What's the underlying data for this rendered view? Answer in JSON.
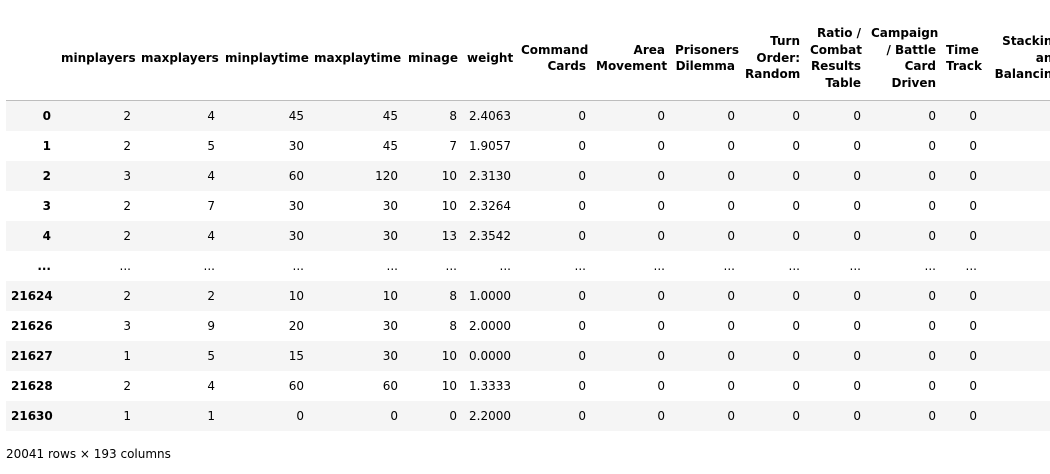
{
  "table": {
    "columns": [
      "",
      "minplayers",
      "maxplayers",
      "minplaytime",
      "maxplaytime",
      "minage",
      "weight",
      "Command Cards",
      "Area Movement",
      "Prisoners Dilemma",
      "Turn Order: Random",
      "Ratio / Combat Results Table",
      "Campaign / Battle Card Driven",
      "Time Track",
      "Stacking and Balancing"
    ],
    "rows": [
      {
        "index": "0",
        "cells": [
          "2",
          "4",
          "45",
          "45",
          "8",
          "2.4063",
          "0",
          "0",
          "0",
          "0",
          "0",
          "0",
          "0",
          ""
        ]
      },
      {
        "index": "1",
        "cells": [
          "2",
          "5",
          "30",
          "45",
          "7",
          "1.9057",
          "0",
          "0",
          "0",
          "0",
          "0",
          "0",
          "0",
          ""
        ]
      },
      {
        "index": "2",
        "cells": [
          "3",
          "4",
          "60",
          "120",
          "10",
          "2.3130",
          "0",
          "0",
          "0",
          "0",
          "0",
          "0",
          "0",
          ""
        ]
      },
      {
        "index": "3",
        "cells": [
          "2",
          "7",
          "30",
          "30",
          "10",
          "2.3264",
          "0",
          "0",
          "0",
          "0",
          "0",
          "0",
          "0",
          ""
        ]
      },
      {
        "index": "4",
        "cells": [
          "2",
          "4",
          "30",
          "30",
          "13",
          "2.3542",
          "0",
          "0",
          "0",
          "0",
          "0",
          "0",
          "0",
          ""
        ]
      },
      {
        "index": "...",
        "cells": [
          "...",
          "...",
          "...",
          "...",
          "...",
          "...",
          "...",
          "...",
          "...",
          "...",
          "...",
          "...",
          "...",
          ""
        ]
      },
      {
        "index": "21624",
        "cells": [
          "2",
          "2",
          "10",
          "10",
          "8",
          "1.0000",
          "0",
          "0",
          "0",
          "0",
          "0",
          "0",
          "0",
          ""
        ]
      },
      {
        "index": "21626",
        "cells": [
          "3",
          "9",
          "20",
          "30",
          "8",
          "2.0000",
          "0",
          "0",
          "0",
          "0",
          "0",
          "0",
          "0",
          ""
        ]
      },
      {
        "index": "21627",
        "cells": [
          "1",
          "5",
          "15",
          "30",
          "10",
          "0.0000",
          "0",
          "0",
          "0",
          "0",
          "0",
          "0",
          "0",
          ""
        ]
      },
      {
        "index": "21628",
        "cells": [
          "2",
          "4",
          "60",
          "60",
          "10",
          "1.3333",
          "0",
          "0",
          "0",
          "0",
          "0",
          "0",
          "0",
          ""
        ]
      },
      {
        "index": "21630",
        "cells": [
          "1",
          "1",
          "0",
          "0",
          "0",
          "2.2000",
          "0",
          "0",
          "0",
          "0",
          "0",
          "0",
          "0",
          ""
        ]
      }
    ]
  },
  "footer": {
    "shape_text": "20041 rows × 193 columns"
  }
}
